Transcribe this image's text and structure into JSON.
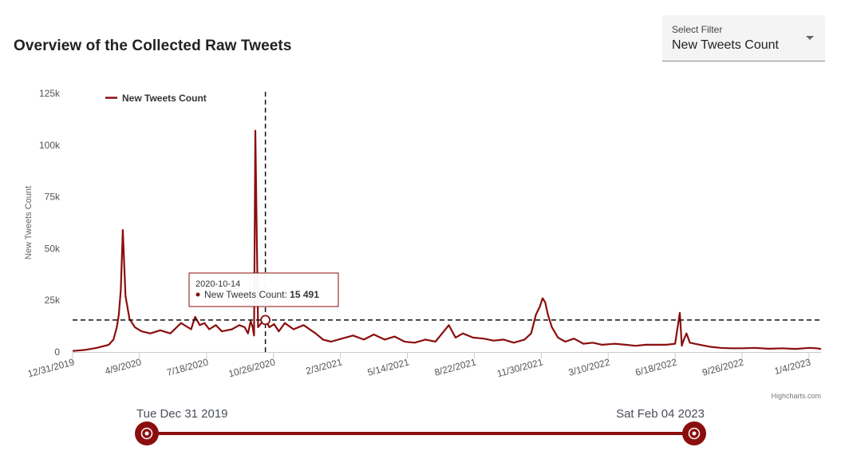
{
  "page": {
    "title": "Overview of the Collected Raw Tweets",
    "filter": {
      "label": "Select Filter",
      "value": "New Tweets Count"
    },
    "credits": "Highcharts.com",
    "range": {
      "start_label": "Tue Dec 31 2019",
      "end_label": "Sat Feb 04 2023"
    },
    "colors": {
      "series": "#8b0e0e",
      "crosshair": "#111111",
      "axis": "#cccccc"
    }
  },
  "chart_data": {
    "type": "line",
    "xlabel": "",
    "ylabel": "New Tweets Count",
    "ylim": [
      0,
      125000
    ],
    "yticks": [
      0,
      25000,
      50000,
      75000,
      100000,
      125000
    ],
    "ytick_labels": [
      "0",
      "25k",
      "50k",
      "75k",
      "100k",
      "125k"
    ],
    "xlim": [
      "2019-12-31",
      "2023-01-22"
    ],
    "xticks": [
      "2019-12-31",
      "2020-04-09",
      "2020-07-18",
      "2020-10-26",
      "2021-02-03",
      "2021-05-14",
      "2021-08-22",
      "2021-11-30",
      "2022-03-10",
      "2022-06-18",
      "2022-09-26",
      "2023-01-04"
    ],
    "xtick_labels": [
      "12/31/2019",
      "4/9/2020",
      "7/18/2020",
      "10/26/2020",
      "2/3/2021",
      "5/14/2021",
      "8/22/2021",
      "11/30/2021",
      "3/10/2022",
      "6/18/2022",
      "9/26/2022",
      "1/4/2023"
    ],
    "legend": {
      "position": "top-left"
    },
    "grid": false,
    "series": [
      {
        "name": "New Tweets Count",
        "x": [
          "2019-12-31",
          "2020-01-18",
          "2020-02-05",
          "2020-02-23",
          "2020-03-01",
          "2020-03-06",
          "2020-03-09",
          "2020-03-12",
          "2020-03-15",
          "2020-03-19",
          "2020-03-25",
          "2020-04-02",
          "2020-04-12",
          "2020-04-25",
          "2020-05-10",
          "2020-05-25",
          "2020-06-10",
          "2020-06-25",
          "2020-07-01",
          "2020-07-08",
          "2020-07-15",
          "2020-07-22",
          "2020-08-01",
          "2020-08-10",
          "2020-08-25",
          "2020-09-05",
          "2020-09-13",
          "2020-09-18",
          "2020-09-22",
          "2020-09-25",
          "2020-09-27",
          "2020-09-29",
          "2020-10-03",
          "2020-10-08",
          "2020-10-14",
          "2020-10-20",
          "2020-10-27",
          "2020-11-03",
          "2020-11-12",
          "2020-11-25",
          "2020-12-10",
          "2020-12-28",
          "2021-01-08",
          "2021-01-20",
          "2021-02-05",
          "2021-02-22",
          "2021-03-10",
          "2021-03-25",
          "2021-04-10",
          "2021-04-25",
          "2021-05-10",
          "2021-05-25",
          "2021-06-10",
          "2021-06-25",
          "2021-07-05",
          "2021-07-15",
          "2021-07-25",
          "2021-08-05",
          "2021-08-20",
          "2021-09-05",
          "2021-09-20",
          "2021-10-05",
          "2021-10-20",
          "2021-11-05",
          "2021-11-15",
          "2021-11-22",
          "2021-11-28",
          "2021-12-02",
          "2021-12-06",
          "2021-12-10",
          "2021-12-16",
          "2021-12-25",
          "2022-01-05",
          "2022-01-18",
          "2022-02-01",
          "2022-02-15",
          "2022-03-01",
          "2022-03-20",
          "2022-04-05",
          "2022-04-20",
          "2022-05-05",
          "2022-05-20",
          "2022-06-05",
          "2022-06-18",
          "2022-06-25",
          "2022-06-28",
          "2022-07-01",
          "2022-07-05",
          "2022-07-10",
          "2022-07-25",
          "2022-08-10",
          "2022-08-25",
          "2022-09-10",
          "2022-09-26",
          "2022-10-15",
          "2022-11-05",
          "2022-11-25",
          "2022-12-15",
          "2023-01-04",
          "2023-01-15",
          "2023-01-22"
        ],
        "y": [
          500,
          1000,
          2000,
          3500,
          6000,
          12000,
          18000,
          30000,
          59000,
          27000,
          16000,
          12000,
          10000,
          9000,
          10500,
          9000,
          14000,
          11000,
          17000,
          13000,
          14000,
          11000,
          13000,
          10000,
          11000,
          13000,
          12000,
          9000,
          15000,
          12000,
          8000,
          107000,
          12000,
          14000,
          15491,
          12000,
          13500,
          10000,
          14000,
          11000,
          13000,
          9000,
          6000,
          5000,
          6500,
          8000,
          6000,
          8500,
          6000,
          7500,
          5000,
          4500,
          6000,
          5000,
          9000,
          13000,
          7000,
          9000,
          7000,
          6500,
          5500,
          6000,
          4500,
          6000,
          9000,
          18000,
          22000,
          26000,
          24000,
          18000,
          12000,
          7000,
          5000,
          6500,
          4000,
          4500,
          3500,
          4000,
          3500,
          3000,
          3500,
          3500,
          3500,
          4000,
          19000,
          3000,
          6000,
          9000,
          4500,
          3500,
          2500,
          2000,
          1800,
          1800,
          2000,
          1600,
          1800,
          1500,
          2000,
          1800,
          1500
        ]
      }
    ],
    "tooltip": {
      "date": "2020-10-14",
      "series": "New Tweets Count",
      "value": "15 491"
    },
    "crosshair": {
      "x": "2020-10-14",
      "y": 15491
    }
  }
}
